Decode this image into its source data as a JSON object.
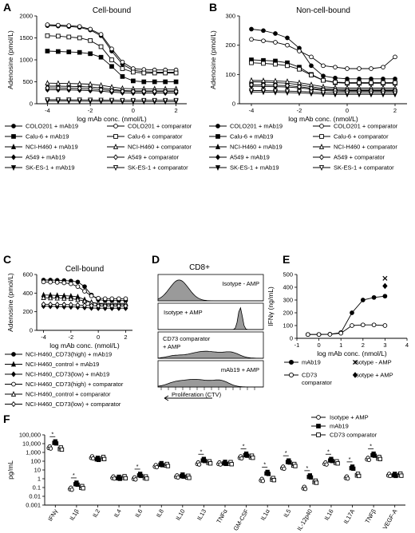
{
  "figure": {
    "panel_letters": [
      "A",
      "B",
      "C",
      "D",
      "E",
      "F"
    ]
  },
  "chart_data": [
    {
      "id": "A",
      "type": "line",
      "title": "Cell-bound",
      "xlabel": "log mAb conc. (nmol/L)",
      "ylabel": "Adenosine (pmol/L)",
      "xlim": [
        -4.5,
        2.5
      ],
      "ylim": [
        0,
        2000
      ],
      "xticks": [
        -4,
        -2,
        0,
        2
      ],
      "yticks": [
        0,
        500,
        1000,
        1500,
        2000
      ],
      "x": [
        -4,
        -3.5,
        -3,
        -2.5,
        -2,
        -1.5,
        -1,
        -0.5,
        0,
        0.5,
        1,
        1.5,
        2
      ],
      "series": [
        {
          "name": "COLO201 + mAb19",
          "marker": "filled-circle",
          "values": [
            1780,
            1770,
            1760,
            1740,
            1680,
            1550,
            1200,
            900,
            760,
            730,
            720,
            720,
            720
          ]
        },
        {
          "name": "COLO201 + comparator",
          "marker": "open-circle",
          "values": [
            1800,
            1790,
            1780,
            1760,
            1700,
            1580,
            1250,
            950,
            800,
            780,
            770,
            770,
            770
          ]
        },
        {
          "name": "Calu-6 + mAb19",
          "marker": "filled-square",
          "values": [
            1200,
            1190,
            1180,
            1170,
            1140,
            1060,
            850,
            620,
            520,
            500,
            500,
            500,
            500
          ]
        },
        {
          "name": "Calu-6 + comparator",
          "marker": "open-square",
          "values": [
            1550,
            1540,
            1520,
            1500,
            1440,
            1300,
            1000,
            800,
            720,
            700,
            700,
            700,
            700
          ]
        },
        {
          "name": "NCI-H460 + mAb19",
          "marker": "filled-triangle",
          "values": [
            400,
            400,
            395,
            390,
            380,
            360,
            330,
            300,
            290,
            290,
            290,
            290,
            290
          ]
        },
        {
          "name": "NCI-H460 + comparator",
          "marker": "open-triangle",
          "values": [
            470,
            465,
            460,
            455,
            445,
            420,
            380,
            350,
            340,
            340,
            340,
            340,
            340
          ]
        },
        {
          "name": "A549 + mAb19",
          "marker": "filled-diamond",
          "values": [
            320,
            318,
            315,
            310,
            300,
            285,
            265,
            250,
            245,
            245,
            245,
            245,
            245
          ]
        },
        {
          "name": "A549 + comparator",
          "marker": "open-diamond",
          "values": [
            360,
            358,
            355,
            350,
            340,
            320,
            300,
            285,
            280,
            280,
            280,
            280,
            280
          ]
        },
        {
          "name": "SK-ES-1 + mAb19",
          "marker": "filled-triangle-down",
          "values": [
            60,
            60,
            60,
            58,
            57,
            55,
            52,
            50,
            50,
            50,
            50,
            50,
            50
          ]
        },
        {
          "name": "SK-ES-1 + comparator",
          "marker": "open-triangle-down",
          "values": [
            90,
            90,
            88,
            87,
            85,
            83,
            80,
            78,
            78,
            78,
            78,
            78,
            78
          ]
        }
      ]
    },
    {
      "id": "B",
      "type": "line",
      "title": "Non-cell-bound",
      "xlabel": "log mAb conc. (nmol/L)",
      "ylabel": "Adenosine (pmol/L)",
      "xlim": [
        -4.5,
        2.5
      ],
      "ylim": [
        0,
        300
      ],
      "xticks": [
        -4,
        -2,
        0,
        2
      ],
      "yticks": [
        0,
        100,
        200,
        300
      ],
      "x": [
        -4,
        -3.5,
        -3,
        -2.5,
        -2,
        -1.5,
        -1,
        -0.5,
        0,
        0.5,
        1,
        1.5,
        2
      ],
      "series": [
        {
          "name": "COLO201 + mAb19",
          "marker": "filled-circle",
          "values": [
            255,
            250,
            240,
            225,
            190,
            130,
            95,
            88,
            85,
            85,
            85,
            85,
            85
          ]
        },
        {
          "name": "COLO201 + comparator",
          "marker": "open-circle",
          "values": [
            220,
            215,
            210,
            200,
            180,
            160,
            130,
            125,
            120,
            120,
            120,
            125,
            160
          ]
        },
        {
          "name": "Calu-6 + mAb19",
          "marker": "filled-square",
          "values": [
            150,
            148,
            146,
            140,
            125,
            100,
            80,
            72,
            70,
            70,
            70,
            70,
            70
          ]
        },
        {
          "name": "Calu-6 + comparator",
          "marker": "open-square",
          "values": [
            140,
            138,
            135,
            130,
            118,
            98,
            80,
            74,
            72,
            72,
            72,
            72,
            72
          ]
        },
        {
          "name": "NCI-H460 + mAb19",
          "marker": "filled-triangle",
          "values": [
            75,
            74,
            72,
            70,
            65,
            58,
            52,
            50,
            49,
            49,
            49,
            49,
            49
          ]
        },
        {
          "name": "NCI-H460 + comparator",
          "marker": "open-triangle",
          "values": [
            80,
            79,
            78,
            76,
            72,
            65,
            58,
            55,
            54,
            54,
            54,
            54,
            54
          ]
        },
        {
          "name": "A549 + mAb19",
          "marker": "filled-diamond",
          "values": [
            60,
            59,
            58,
            57,
            54,
            50,
            45,
            43,
            42,
            42,
            42,
            42,
            42
          ]
        },
        {
          "name": "A549 + comparator",
          "marker": "open-diamond",
          "values": [
            65,
            64,
            63,
            62,
            58,
            53,
            48,
            46,
            45,
            45,
            45,
            45,
            45
          ]
        },
        {
          "name": "SK-ES-1 + mAb19",
          "marker": "filled-triangle-down",
          "values": [
            40,
            40,
            39,
            38,
            37,
            35,
            33,
            32,
            32,
            32,
            32,
            32,
            32
          ]
        },
        {
          "name": "SK-ES-1 + comparator",
          "marker": "open-triangle-down",
          "values": [
            45,
            45,
            44,
            43,
            42,
            40,
            38,
            37,
            37,
            37,
            37,
            37,
            37
          ]
        }
      ]
    },
    {
      "id": "C",
      "type": "line",
      "title": "Cell-bound",
      "xlabel": "log mAb conc. (nmol/L)",
      "ylabel": "Adenosine (pmol/L)",
      "xlim": [
        -4.5,
        2.5
      ],
      "ylim": [
        0,
        600
      ],
      "xticks": [
        -4,
        -2,
        0,
        2
      ],
      "yticks": [
        0,
        200,
        400,
        600
      ],
      "x": [
        -4,
        -3.5,
        -3,
        -2.5,
        -2,
        -1.5,
        -1,
        -0.5,
        0,
        0.5,
        1,
        1.5,
        2
      ],
      "series": [
        {
          "name": "NCI-H460_CD73(high) + mAb19",
          "marker": "filled-circle",
          "values": [
            540,
            540,
            538,
            535,
            530,
            520,
            470,
            380,
            330,
            320,
            320,
            320,
            320
          ]
        },
        {
          "name": "NCI-H460_control + mAb19",
          "marker": "filled-triangle",
          "values": [
            380,
            378,
            375,
            372,
            368,
            360,
            330,
            300,
            285,
            280,
            280,
            280,
            280
          ]
        },
        {
          "name": "NCI-H460_CD73(low) + mAb19",
          "marker": "filled-diamond",
          "values": [
            260,
            258,
            256,
            254,
            252,
            250,
            245,
            240,
            238,
            238,
            238,
            238,
            238
          ]
        },
        {
          "name": "NCI-H460_CD73(high) + comparator",
          "marker": "open-circle",
          "values": [
            520,
            518,
            515,
            510,
            500,
            470,
            420,
            370,
            345,
            340,
            340,
            340,
            340
          ]
        },
        {
          "name": "NCI-H460_control + comparator",
          "marker": "open-triangle",
          "values": [
            350,
            348,
            346,
            344,
            340,
            330,
            315,
            300,
            290,
            290,
            290,
            290,
            290
          ]
        },
        {
          "name": "NCI-H460_CD73(low) + comparator",
          "marker": "open-diamond",
          "values": [
            280,
            279,
            278,
            277,
            275,
            272,
            268,
            265,
            262,
            262,
            262,
            262,
            262
          ]
        }
      ]
    },
    {
      "id": "D",
      "type": "histogram",
      "title": "CD8+",
      "xlabel": "Proliferation (CTV)",
      "histograms": [
        {
          "label": "Isotype - AMP",
          "peak": 0.2,
          "width": 0.18,
          "height": 0.9
        },
        {
          "label": "Isotype + AMP",
          "peak": 0.78,
          "width": 0.04,
          "height": 0.95
        },
        {
          "label": "CD73 comparator + AMP",
          "peak": 0.45,
          "width": 0.3,
          "height": 0.55
        },
        {
          "label": "mAb19 + AMP",
          "peak": 0.35,
          "width": 0.3,
          "height": 0.6
        }
      ]
    },
    {
      "id": "E",
      "type": "line",
      "xlabel": "log mAb conc. (nmol/L)",
      "ylabel": "IFNγ (ng/mL)",
      "xlim": [
        -1,
        4
      ],
      "ylim": [
        0,
        500
      ],
      "xticks": [
        -1,
        0,
        1,
        2,
        3,
        4
      ],
      "yticks": [
        0,
        100,
        200,
        300,
        400,
        500
      ],
      "x": [
        -0.5,
        0,
        0.5,
        1,
        1.5,
        2,
        2.5,
        3
      ],
      "series": [
        {
          "name": "mAb19",
          "marker": "filled-circle",
          "values": [
            30,
            30,
            32,
            45,
            200,
            300,
            320,
            330
          ]
        },
        {
          "name": "CD73 comparator",
          "marker": "open-circle",
          "values": [
            30,
            30,
            31,
            40,
            100,
            105,
            105,
            100
          ]
        }
      ],
      "points": [
        {
          "name": "Isotype - AMP",
          "marker": "cross",
          "x": 3,
          "y": 470
        },
        {
          "name": "Isotype + AMP",
          "marker": "diamond",
          "x": 3,
          "y": 410
        }
      ]
    },
    {
      "id": "F",
      "type": "scatter",
      "ylabel": "pg/mL",
      "yscale": "log",
      "yticks": [
        "0.001",
        "0.01",
        "0.1",
        "1",
        "10",
        "100",
        "1,000",
        "10,000",
        "100,000"
      ],
      "categories": [
        "IFNγ",
        "IL1β",
        "IL2",
        "IL4",
        "IL6",
        "IL8",
        "IL10",
        "IL13",
        "TNFα",
        "GM-CSF",
        "IL1α",
        "IL5",
        "IL-12p40",
        "IL16",
        "IL17A",
        "TNFβ",
        "VEGF-A"
      ],
      "significant": [
        true,
        true,
        false,
        false,
        true,
        false,
        false,
        true,
        false,
        true,
        true,
        true,
        true,
        true,
        true,
        true,
        false
      ],
      "series": [
        {
          "name": "Isotype + AMP",
          "marker": "open-circle",
          "values": [
            4000,
            0.08,
            300,
            1.5,
            1.2,
            30,
            2,
            60,
            60,
            300,
            0.8,
            20,
            0.1,
            60,
            1.5,
            200,
            3
          ]
        },
        {
          "name": "mAb19",
          "marker": "filled-square",
          "values": [
            15000,
            0.3,
            200,
            1.4,
            3,
            50,
            2.5,
            150,
            70,
            600,
            5,
            100,
            2,
            150,
            20,
            600,
            3
          ]
        },
        {
          "name": "CD73 comparator",
          "marker": "open-square",
          "values": [
            3000,
            0.12,
            250,
            1.6,
            1.5,
            40,
            1.8,
            80,
            65,
            350,
            1,
            40,
            0.5,
            80,
            3,
            250,
            3.2
          ]
        }
      ]
    }
  ]
}
